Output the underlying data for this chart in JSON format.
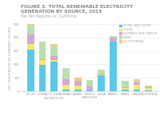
{
  "title": "FIGURE 3. TOTAL RENEWABLE ELECTRICITY GENERATION BY SOURCE, 2015",
  "subtitle": "Top Ten Regions vs. California",
  "categories": [
    "EU-28",
    "CHINA",
    "U.S. EXCL\nCA/CA-EQUIV",
    "GERMANY",
    "JAPAN",
    "UNITED\nKINGDOM",
    "INDIA",
    "BRAZIL",
    "SPAIN",
    "ITALY",
    "CALIFORNIA"
  ],
  "hydro_and_more": [
    310,
    195,
    220,
    10,
    10,
    5,
    120,
    370,
    10,
    10,
    5
  ],
  "solar": [
    40,
    35,
    15,
    35,
    30,
    3,
    5,
    2,
    15,
    40,
    18
  ],
  "biomass_waste": [
    70,
    8,
    25,
    45,
    35,
    30,
    5,
    25,
    5,
    15,
    4
  ],
  "wind": [
    75,
    130,
    75,
    80,
    5,
    45,
    28,
    12,
    48,
    14,
    8
  ],
  "geothermal": [
    3,
    3,
    18,
    0,
    20,
    0,
    0,
    0,
    0,
    8,
    6
  ],
  "colors": {
    "hydro_and_more": "#5bc8e8",
    "solar": "#f5e96b",
    "biomass_waste": "#d4a8d8",
    "wind": "#b8e0b0",
    "geothermal": "#f7c97e"
  },
  "legend_labels": [
    "TOTAL AND MORE",
    "SOLAR",
    "BIOMASS AND WASTE",
    "WIND",
    "GEOTHERMAL"
  ],
  "ylabel": "NET GENERATION (IN TERAWATT HOURS)",
  "ylim": [
    0,
    500
  ],
  "yticks": [
    0,
    100,
    200,
    300,
    400,
    500
  ],
  "background_color": "#ffffff",
  "title_color": "#888888",
  "subtitle_color": "#aaaaaa",
  "title_fontsize": 4.2,
  "subtitle_fontsize": 3.4,
  "axis_fontsize": 2.8,
  "legend_fontsize": 2.8,
  "tick_fontsize": 2.8
}
